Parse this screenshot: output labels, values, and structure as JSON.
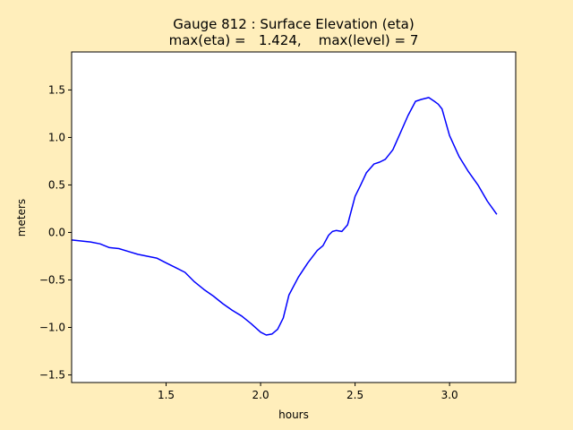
{
  "chart_data": {
    "type": "line",
    "title_line1": "Gauge 812 : Surface Elevation (eta)",
    "title_line2": "max(eta) =   1.424,    max(level) = 7",
    "xlabel": "hours",
    "ylabel": "meters",
    "xlim": [
      1.0,
      3.35
    ],
    "ylim": [
      -1.58,
      1.9
    ],
    "xticks": [
      1.5,
      2.0,
      2.5,
      3.0
    ],
    "xtick_labels": [
      "1.5",
      "2.0",
      "2.5",
      "3.0"
    ],
    "yticks": [
      -1.5,
      -1.0,
      -0.5,
      0.0,
      0.5,
      1.0,
      1.5
    ],
    "ytick_labels": [
      "−1.5",
      "−1.0",
      "−0.5",
      "0.0",
      "0.5",
      "1.0",
      "1.5"
    ],
    "grid": false,
    "colors": {
      "background": "#ffeebb",
      "plot_area": "#ffffff",
      "line": "#0000ff"
    },
    "series": [
      {
        "x": [
          1.0,
          1.05,
          1.1,
          1.15,
          1.2,
          1.25,
          1.3,
          1.35,
          1.4,
          1.45,
          1.5,
          1.55,
          1.6,
          1.65,
          1.7,
          1.75,
          1.8,
          1.85,
          1.9,
          1.95,
          2.0,
          2.03,
          2.06,
          2.09,
          2.12,
          2.15,
          2.2,
          2.25,
          2.3,
          2.33,
          2.36,
          2.38,
          2.4,
          2.43,
          2.46,
          2.5,
          2.53,
          2.56,
          2.6,
          2.63,
          2.66,
          2.7,
          2.74,
          2.78,
          2.82,
          2.85,
          2.89,
          2.92,
          2.94,
          2.96,
          3.0,
          3.05,
          3.1,
          3.15,
          3.2,
          3.25
        ],
        "y": [
          -0.08,
          -0.09,
          -0.1,
          -0.12,
          -0.16,
          -0.17,
          -0.2,
          -0.23,
          -0.25,
          -0.27,
          -0.32,
          -0.37,
          -0.42,
          -0.52,
          -0.6,
          -0.67,
          -0.75,
          -0.82,
          -0.88,
          -0.96,
          -1.05,
          -1.08,
          -1.07,
          -1.02,
          -0.9,
          -0.66,
          -0.47,
          -0.32,
          -0.19,
          -0.14,
          -0.03,
          0.01,
          0.02,
          0.01,
          0.08,
          0.38,
          0.5,
          0.63,
          0.72,
          0.74,
          0.77,
          0.87,
          1.05,
          1.23,
          1.38,
          1.4,
          1.42,
          1.38,
          1.35,
          1.3,
          1.02,
          0.8,
          0.64,
          0.5,
          0.33,
          0.19
        ]
      }
    ]
  }
}
